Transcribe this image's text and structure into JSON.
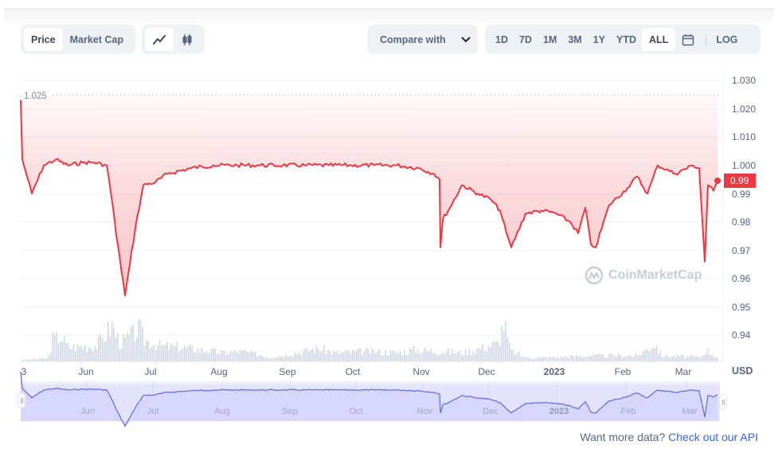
{
  "toolbar": {
    "metric_tabs": [
      {
        "label": "Price",
        "active": true
      },
      {
        "label": "Market Cap",
        "active": false
      }
    ],
    "chart_type_buttons": [
      {
        "icon": "line-chart-icon",
        "active": true
      },
      {
        "icon": "candlestick-icon",
        "active": false
      }
    ],
    "compare": {
      "label": "Compare with",
      "icon": "chevron-down-icon"
    },
    "ranges": [
      {
        "label": "1D",
        "active": false
      },
      {
        "label": "7D",
        "active": false
      },
      {
        "label": "1M",
        "active": false
      },
      {
        "label": "3M",
        "active": false
      },
      {
        "label": "1Y",
        "active": false
      },
      {
        "label": "YTD",
        "active": false
      },
      {
        "label": "ALL",
        "active": true
      }
    ],
    "calendar_icon": "calendar-icon",
    "log_label": "LOG"
  },
  "chart": {
    "reference_label": "1.025",
    "current_price_label": "0.99",
    "currency_label": "USD",
    "watermark": "CoinMarketCap",
    "line_color": "#ea3943",
    "navigator_color": "#6c6fd9"
  },
  "footer": {
    "prompt": "Want more data?",
    "link": "Check out our API"
  },
  "chart_data": {
    "type": "line",
    "title": "",
    "xlabel": "",
    "ylabel": "USD",
    "ylim": [
      0.935,
      1.03
    ],
    "grid": true,
    "y_ticks": [
      "1.030",
      "1.020",
      "1.010",
      "1.000",
      "0.99",
      "0.98",
      "0.97",
      "0.96",
      "0.95",
      "0.94"
    ],
    "x_ticks": [
      "3",
      "Jun",
      "Jul",
      "Aug",
      "Sep",
      "Oct",
      "Nov",
      "Dec",
      "2023",
      "Feb",
      "Mar"
    ],
    "annotations": [
      {
        "type": "reference_line",
        "value": 1.025,
        "label": "1.025",
        "style": "dotted"
      },
      {
        "type": "last_price_tag",
        "value": 0.99,
        "label": "0.99"
      }
    ],
    "series": [
      {
        "name": "Price",
        "x": [
          "May 3",
          "May 4",
          "May 6",
          "May 10",
          "May 15",
          "May 20",
          "May 25",
          "May 31",
          "Jun 5",
          "Jun 10",
          "Jun 13",
          "Jun 14",
          "Jun 16",
          "Jun 18",
          "Jun 20",
          "Jun 22",
          "Jun 25",
          "Jun 30",
          "Jul 5",
          "Jul 15",
          "Jul 25",
          "Aug 5",
          "Aug 15",
          "Aug 25",
          "Sep 5",
          "Sep 15",
          "Sep 25",
          "Oct 5",
          "Oct 15",
          "Oct 25",
          "Nov 1",
          "Nov 5",
          "Nov 8",
          "Nov 9",
          "Nov 12",
          "Nov 18",
          "Nov 25",
          "Dec 1",
          "Dec 5",
          "Dec 8",
          "Dec 12",
          "Dec 18",
          "Dec 25",
          "Jan 1",
          "Jan 8",
          "Jan 12",
          "Jan 15",
          "Jan 18",
          "Jan 22",
          "Jan 28",
          "Feb 5",
          "Feb 10",
          "Feb 15",
          "Feb 22",
          "Mar 1",
          "Mar 8",
          "Mar 10",
          "Mar 11",
          "Mar 12",
          "Mar 14",
          "Mar 15"
        ],
        "values": [
          1.023,
          1.002,
          0.998,
          0.99,
          1.0,
          1.002,
          1.0,
          1.001,
          1.001,
          1.0,
          0.985,
          0.975,
          0.968,
          0.954,
          0.965,
          0.978,
          0.993,
          0.994,
          0.997,
          0.999,
          1.0,
          1.0,
          1.0,
          1.0,
          1.0,
          1.0,
          1.0,
          1.0,
          1.0,
          0.999,
          0.997,
          0.995,
          0.971,
          0.981,
          0.985,
          0.993,
          0.99,
          0.988,
          0.984,
          0.976,
          0.971,
          0.983,
          0.984,
          0.983,
          0.98,
          0.976,
          0.985,
          0.972,
          0.971,
          0.986,
          0.992,
          0.996,
          0.99,
          1.0,
          0.997,
          1.0,
          0.999,
          0.966,
          0.993,
          0.991,
          0.994
        ]
      }
    ]
  }
}
